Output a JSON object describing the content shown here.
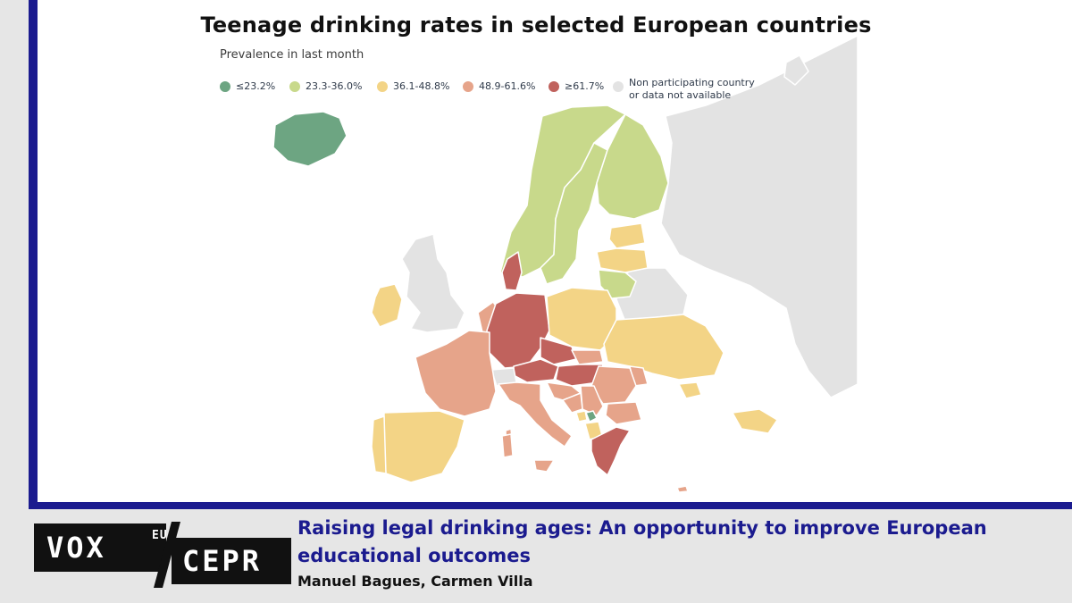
{
  "map": {
    "title": "Teenage drinking rates in selected European countries",
    "subtitle": "Prevalence in last month",
    "legend": [
      {
        "label": "≤23.2%",
        "color": "#6da582"
      },
      {
        "label": "23.3-36.0%",
        "color": "#c8d98b"
      },
      {
        "label": "36.1-48.8%",
        "color": "#f3d486"
      },
      {
        "label": "48.9-61.6%",
        "color": "#e6a48a"
      },
      {
        "label": "≥61.7%",
        "color": "#c0625d"
      },
      {
        "label": "Non participating country or data not available",
        "color": "#e3e3e3"
      }
    ],
    "regions": [
      {
        "name": "Iceland",
        "class": "≤23.2%"
      },
      {
        "name": "Kosovo",
        "class": "≤23.2%"
      },
      {
        "name": "Norway",
        "class": "23.3-36.0%"
      },
      {
        "name": "Sweden",
        "class": "23.3-36.0%"
      },
      {
        "name": "Finland",
        "class": "23.3-36.0%"
      },
      {
        "name": "Lithuania",
        "class": "23.3-36.0%"
      },
      {
        "name": "Estonia",
        "class": "36.1-48.8%"
      },
      {
        "name": "Latvia",
        "class": "36.1-48.8%"
      },
      {
        "name": "Ireland",
        "class": "36.1-48.8%"
      },
      {
        "name": "Poland",
        "class": "36.1-48.8%"
      },
      {
        "name": "Ukraine",
        "class": "36.1-48.8%"
      },
      {
        "name": "Spain",
        "class": "36.1-48.8%"
      },
      {
        "name": "Portugal",
        "class": "36.1-48.8%"
      },
      {
        "name": "Montenegro",
        "class": "36.1-48.8%"
      },
      {
        "name": "Albania",
        "class": "36.1-48.8%"
      },
      {
        "name": "Turkey",
        "class": "36.1-48.8%"
      },
      {
        "name": "France",
        "class": "48.9-61.6%"
      },
      {
        "name": "Italy",
        "class": "48.9-61.6%"
      },
      {
        "name": "Netherlands",
        "class": "48.9-61.6%"
      },
      {
        "name": "Slovakia",
        "class": "48.9-61.6%"
      },
      {
        "name": "Romania",
        "class": "48.9-61.6%"
      },
      {
        "name": "Bulgaria",
        "class": "48.9-61.6%"
      },
      {
        "name": "Serbia",
        "class": "48.9-61.6%"
      },
      {
        "name": "Croatia",
        "class": "48.9-61.6%"
      },
      {
        "name": "Bosnia and Herzegovina",
        "class": "48.9-61.6%"
      },
      {
        "name": "Moldova",
        "class": "48.9-61.6%"
      },
      {
        "name": "Cyprus",
        "class": "48.9-61.6%"
      },
      {
        "name": "Denmark",
        "class": "≥61.7%"
      },
      {
        "name": "Germany",
        "class": "≥61.7%"
      },
      {
        "name": "Czechia",
        "class": "≥61.7%"
      },
      {
        "name": "Austria",
        "class": "≥61.7%"
      },
      {
        "name": "Hungary",
        "class": "≥61.7%"
      },
      {
        "name": "Greece",
        "class": "≥61.7%"
      },
      {
        "name": "United Kingdom",
        "class": "Non participating country or data not available"
      },
      {
        "name": "Switzerland",
        "class": "Non participating country or data not available"
      },
      {
        "name": "Belarus",
        "class": "Non participating country or data not available"
      },
      {
        "name": "Russia",
        "class": "Non participating country or data not available"
      }
    ]
  },
  "footer": {
    "article_title": "Raising legal drinking ages: An opportunity to improve European educational outcomes",
    "authors": "Manuel Bagues, Carmen Villa"
  },
  "logo": {
    "vox": "VOX",
    "eu": "EU",
    "cepr": "CEPR"
  },
  "colors": {
    "frame": "#1b1b8f",
    "footer_background": "#e6e6e6",
    "title_text": "#1b1b8f"
  }
}
